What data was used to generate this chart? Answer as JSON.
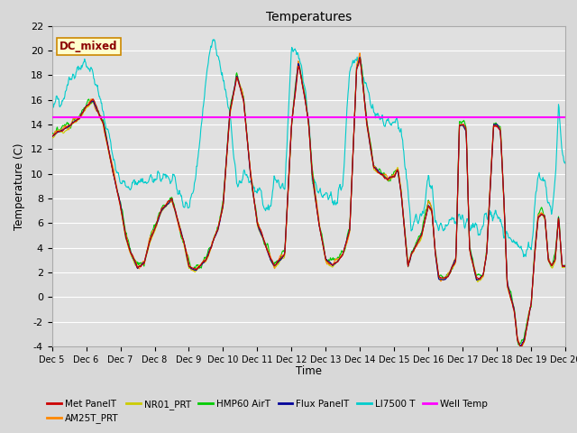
{
  "title": "Temperatures",
  "xlabel": "Time",
  "ylabel": "Temperature (C)",
  "ylim": [
    -4,
    22
  ],
  "yticks": [
    -4,
    -2,
    0,
    2,
    4,
    6,
    8,
    10,
    12,
    14,
    16,
    18,
    20,
    22
  ],
  "well_temp_value": 14.6,
  "dc_mixed_label": "DC_mixed",
  "series_colors": {
    "Met PanelT": "#cc0000",
    "AM25T_PRT": "#ff8800",
    "NR01_PRT": "#cccc00",
    "HMP60 AirT": "#00cc00",
    "Flux PanelT": "#000099",
    "LI7500 T": "#00cccc",
    "Well Temp": "#ff00ff"
  },
  "xtick_labels": [
    "Dec 5",
    "Dec 6",
    "Dec 7",
    "Dec 8",
    "Dec 9",
    "Dec 10",
    "Dec 11",
    "Dec 12",
    "Dec 13",
    "Dec 14",
    "Dec 15",
    "Dec 16",
    "Dec 17",
    "Dec 18",
    "Dec 19",
    "Dec 20"
  ],
  "n_points": 960,
  "figsize": [
    6.4,
    4.8
  ],
  "dpi": 100
}
